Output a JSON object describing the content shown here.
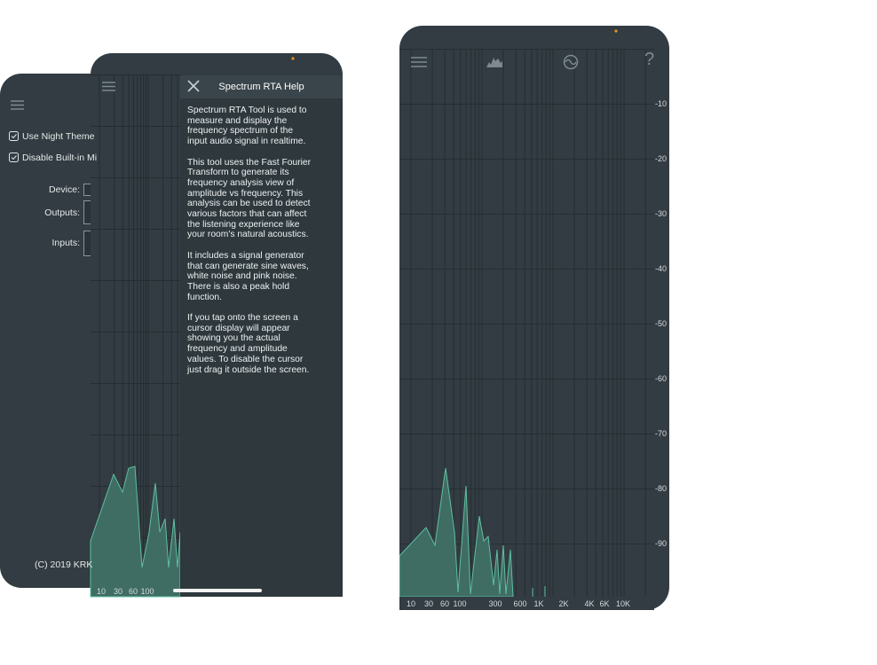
{
  "settings_screen": {
    "options": [
      "Use Night Theme",
      "Disable Built-in Mi"
    ],
    "fields": [
      "Device:",
      "Outputs:",
      "Inputs:"
    ],
    "copyright": "(C) 2019 KRK"
  },
  "help_screen": {
    "title": "Spectrum RTA Help",
    "paragraphs": [
      "Spectrum RTA Tool is used to measure and display the frequency spectrum of the input audio signal in realtime.",
      "This tool uses the Fast Fourier Transform to generate its frequency analysis view of amplitude vs frequency. This analysis can be used to detect various factors that can affect the listening experience like your room's natural acoustics.",
      "It includes a signal generator that can generate sine waves, white noise and pink noise. There is also a peak hold function.",
      "If you tap onto the screen a cursor display will appear showing you the actual frequency and amplitude values. To disable the cursor just drag it outside the screen."
    ],
    "x_labels": [
      "10",
      "30",
      "60",
      "100"
    ]
  },
  "rta_screen": {
    "help_icon": "?",
    "y_labels": [
      "-10",
      "-20",
      "-30",
      "-40",
      "-50",
      "-60",
      "-70",
      "-80",
      "-90"
    ],
    "x_labels": [
      "10",
      "30",
      "60",
      "100",
      "300",
      "600",
      "1K",
      "2K",
      "4K",
      "6K",
      "10K"
    ]
  }
}
